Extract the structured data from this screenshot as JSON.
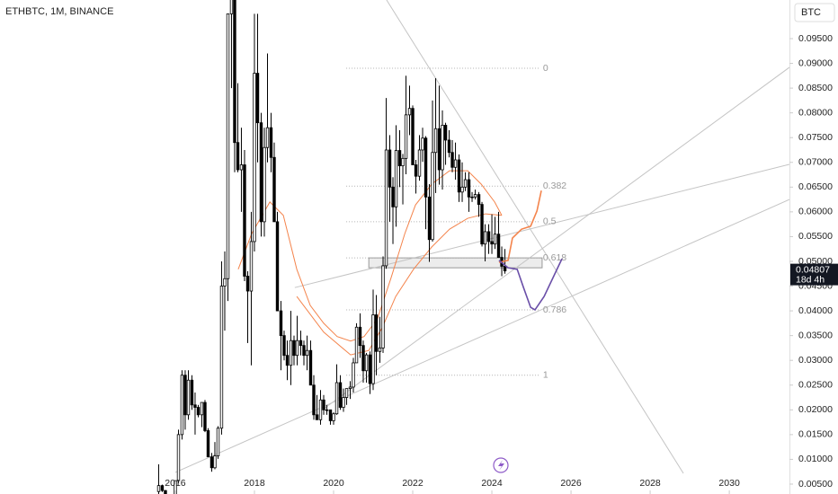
{
  "chart_data": {
    "type": "candlestick",
    "title": "ETHBTC, 1M, BINANCE",
    "currency": "BTC",
    "countdown": "18d 4h",
    "grid": false,
    "xlim": [
      2011.57,
      2031.52
    ],
    "ylim": [
      0.003,
      0.1028
    ],
    "xticks": [
      2016,
      2018,
      2020,
      2022,
      2024,
      2026,
      2028,
      2030
    ],
    "yticks": [
      {
        "value": 0.005,
        "label": "0.00500"
      },
      {
        "value": 0.01,
        "label": "0.01000"
      },
      {
        "value": 0.015,
        "label": "0.01500"
      },
      {
        "value": 0.02,
        "label": "0.02000"
      },
      {
        "value": 0.025,
        "label": "0.02500"
      },
      {
        "value": 0.03,
        "label": "0.03000"
      },
      {
        "value": 0.035,
        "label": "0.03500"
      },
      {
        "value": 0.04,
        "label": "0.04000"
      },
      {
        "value": 0.045,
        "label": "0.04500"
      },
      {
        "value": 0.05,
        "label": "0.05000"
      },
      {
        "value": 0.055,
        "label": "0.05500"
      },
      {
        "value": 0.06,
        "label": "0.06000"
      },
      {
        "value": 0.065,
        "label": "0.06500"
      },
      {
        "value": 0.07,
        "label": "0.07000"
      },
      {
        "value": 0.075,
        "label": "0.07500"
      },
      {
        "value": 0.08,
        "label": "0.08000"
      },
      {
        "value": 0.085,
        "label": "0.08500"
      },
      {
        "value": 0.09,
        "label": "0.09000"
      },
      {
        "value": 0.095,
        "label": "0.09500"
      }
    ],
    "up_color": "#ffffff",
    "down_color": "#000000",
    "x": [
      2015.58,
      2015.67,
      2015.75,
      2015.83,
      2015.92,
      2016.0,
      2016.08,
      2016.17,
      2016.25,
      2016.33,
      2016.42,
      2016.5,
      2016.58,
      2016.67,
      2016.75,
      2016.83,
      2016.92,
      2017.0,
      2017.08,
      2017.17,
      2017.25,
      2017.33,
      2017.42,
      2017.5,
      2017.58,
      2017.67,
      2017.75,
      2017.83,
      2017.92,
      2018.0,
      2018.08,
      2018.17,
      2018.25,
      2018.33,
      2018.42,
      2018.5,
      2018.58,
      2018.67,
      2018.75,
      2018.83,
      2018.92,
      2019.0,
      2019.08,
      2019.17,
      2019.25,
      2019.33,
      2019.42,
      2019.5,
      2019.58,
      2019.67,
      2019.75,
      2019.83,
      2019.92,
      2020.0,
      2020.08,
      2020.17,
      2020.25,
      2020.33,
      2020.42,
      2020.5,
      2020.58,
      2020.67,
      2020.75,
      2020.83,
      2020.92,
      2021.0,
      2021.08,
      2021.17,
      2021.25,
      2021.33,
      2021.42,
      2021.5,
      2021.58,
      2021.67,
      2021.75,
      2021.83,
      2021.92,
      2022.0,
      2022.08,
      2022.17,
      2022.25,
      2022.33,
      2022.42,
      2022.5,
      2022.58,
      2022.67,
      2022.75,
      2022.83,
      2022.92,
      2023.0,
      2023.08,
      2023.17,
      2023.25,
      2023.33,
      2023.42,
      2023.5,
      2023.58,
      2023.67,
      2023.75,
      2023.83,
      2023.92,
      2024.0,
      2024.08,
      2024.17,
      2024.25,
      2024.33
    ],
    "open": [
      0.0035,
      0.0047,
      0.0037,
      0.0019,
      0.0024,
      0.002,
      0.0057,
      0.015,
      0.027,
      0.019,
      0.026,
      0.021,
      0.0205,
      0.019,
      0.0215,
      0.0158,
      0.0105,
      0.0083,
      0.0107,
      0.0163,
      0.045,
      0.0465,
      0.1,
      0.11,
      0.074,
      0.0685,
      0.0695,
      0.047,
      0.044,
      0.054,
      0.088,
      0.078,
      0.058,
      0.073,
      0.077,
      0.071,
      0.058,
      0.04,
      0.035,
      0.031,
      0.029,
      0.034,
      0.031,
      0.034,
      0.033,
      0.031,
      0.032,
      0.025,
      0.019,
      0.018,
      0.022,
      0.02,
      0.02,
      0.0178,
      0.0192,
      0.0255,
      0.0205,
      0.0225,
      0.0243,
      0.0246,
      0.0295,
      0.0367,
      0.033,
      0.0279,
      0.0311,
      0.0253,
      0.0392,
      0.0318,
      0.0325,
      0.0491,
      0.0725,
      0.065,
      0.061,
      0.0724,
      0.0693,
      0.0708,
      0.0796,
      0.0809,
      0.0695,
      0.0672,
      0.0725,
      0.0749,
      0.063,
      0.0544,
      0.072,
      0.0768,
      0.0685,
      0.0775,
      0.0745,
      0.072,
      0.069,
      0.0705,
      0.064,
      0.065,
      0.0665,
      0.063,
      0.063,
      0.0635,
      0.0615,
      0.0535,
      0.056,
      0.054,
      0.0535,
      0.0555,
      0.0508,
      0.049
    ],
    "high": [
      0.009,
      0.0049,
      0.0038,
      0.0024,
      0.0025,
      0.0057,
      0.016,
      0.028,
      0.028,
      0.028,
      0.027,
      0.0235,
      0.021,
      0.0215,
      0.022,
      0.0163,
      0.0113,
      0.0135,
      0.0167,
      0.05,
      0.052,
      0.1,
      0.156,
      0.12,
      0.086,
      0.077,
      0.0725,
      0.048,
      0.06,
      0.1,
      0.1,
      0.08,
      0.077,
      0.092,
      0.08,
      0.074,
      0.06,
      0.042,
      0.036,
      0.034,
      0.04,
      0.035,
      0.039,
      0.036,
      0.034,
      0.035,
      0.034,
      0.027,
      0.023,
      0.024,
      0.023,
      0.021,
      0.02,
      0.0195,
      0.0292,
      0.027,
      0.0243,
      0.024,
      0.0258,
      0.0305,
      0.0375,
      0.0395,
      0.034,
      0.0315,
      0.0318,
      0.0443,
      0.0432,
      0.0388,
      0.051,
      0.083,
      0.0755,
      0.067,
      0.0775,
      0.0765,
      0.0717,
      0.0875,
      0.0855,
      0.0815,
      0.0705,
      0.0755,
      0.077,
      0.0753,
      0.0656,
      0.0825,
      0.087,
      0.0855,
      0.0805,
      0.078,
      0.0765,
      0.0745,
      0.074,
      0.0716,
      0.07,
      0.068,
      0.068,
      0.064,
      0.0645,
      0.064,
      0.062,
      0.0575,
      0.0575,
      0.0595,
      0.059,
      0.06,
      0.053,
      0.0525
    ],
    "low": [
      0.0023,
      0.0034,
      0.0017,
      0.0015,
      0.0019,
      0.002,
      0.0052,
      0.014,
      0.016,
      0.018,
      0.02,
      0.015,
      0.0185,
      0.0165,
      0.0155,
      0.011,
      0.0075,
      0.008,
      0.0101,
      0.015,
      0.036,
      0.042,
      0.085,
      0.068,
      0.068,
      0.06,
      0.046,
      0.0335,
      0.029,
      0.052,
      0.07,
      0.055,
      0.055,
      0.07,
      0.068,
      0.058,
      0.04,
      0.028,
      0.03,
      0.026,
      0.025,
      0.029,
      0.029,
      0.031,
      0.029,
      0.028,
      0.025,
      0.018,
      0.018,
      0.017,
      0.019,
      0.019,
      0.017,
      0.017,
      0.019,
      0.02,
      0.0196,
      0.021,
      0.0222,
      0.0235,
      0.0295,
      0.0305,
      0.0255,
      0.0255,
      0.0232,
      0.024,
      0.027,
      0.0295,
      0.0315,
      0.0485,
      0.058,
      0.0535,
      0.057,
      0.065,
      0.0615,
      0.0676,
      0.0755,
      0.0695,
      0.0637,
      0.0663,
      0.0701,
      0.0565,
      0.0499,
      0.054,
      0.0638,
      0.0655,
      0.0645,
      0.0695,
      0.071,
      0.068,
      0.0665,
      0.062,
      0.062,
      0.0642,
      0.06,
      0.062,
      0.0625,
      0.059,
      0.053,
      0.05,
      0.0515,
      0.0515,
      0.0525,
      0.051,
      0.047,
      0.0475
    ],
    "close": [
      0.0047,
      0.0037,
      0.0019,
      0.0024,
      0.002,
      0.0057,
      0.015,
      0.027,
      0.019,
      0.026,
      0.021,
      0.0205,
      0.019,
      0.0215,
      0.0158,
      0.0105,
      0.0083,
      0.0107,
      0.0163,
      0.045,
      0.0465,
      0.1,
      0.11,
      0.074,
      0.0685,
      0.0695,
      0.047,
      0.044,
      0.054,
      0.088,
      0.078,
      0.058,
      0.073,
      0.077,
      0.071,
      0.058,
      0.04,
      0.035,
      0.031,
      0.029,
      0.034,
      0.031,
      0.034,
      0.033,
      0.031,
      0.032,
      0.025,
      0.019,
      0.018,
      0.022,
      0.02,
      0.02,
      0.0178,
      0.0192,
      0.0255,
      0.0205,
      0.0225,
      0.0243,
      0.0246,
      0.0295,
      0.0367,
      0.033,
      0.0279,
      0.0311,
      0.0253,
      0.0392,
      0.0318,
      0.0325,
      0.0491,
      0.0725,
      0.065,
      0.061,
      0.0724,
      0.0693,
      0.0708,
      0.0796,
      0.0809,
      0.0695,
      0.0672,
      0.0725,
      0.0749,
      0.063,
      0.0544,
      0.072,
      0.0768,
      0.0685,
      0.0775,
      0.0745,
      0.072,
      0.069,
      0.0705,
      0.064,
      0.065,
      0.0665,
      0.063,
      0.063,
      0.0635,
      0.0615,
      0.0535,
      0.056,
      0.054,
      0.0535,
      0.0555,
      0.0508,
      0.049,
      0.04807
    ],
    "moving_averages": [
      {
        "color": "#f4844c",
        "x": [
          2017.59,
          2017.93,
          2018.39,
          2018.73,
          2019.07,
          2019.41,
          2019.75,
          2020.09,
          2020.43,
          2020.77,
          2021.11,
          2021.45,
          2021.8,
          2022.07,
          2022.48,
          2022.93,
          2023.39,
          2023.73,
          2024.07,
          2024.25
        ],
        "values": [
          0.0484,
          0.0556,
          0.062,
          0.0593,
          0.0484,
          0.0411,
          0.0375,
          0.0348,
          0.0339,
          0.0348,
          0.0384,
          0.0466,
          0.0556,
          0.0614,
          0.0656,
          0.0683,
          0.0683,
          0.0656,
          0.062,
          0.0593
        ]
      },
      {
        "color": "#f4844c",
        "x": [
          2019.07,
          2019.75,
          2020.43,
          2020.89,
          2021.23,
          2021.57,
          2022.02,
          2022.48,
          2022.93,
          2023.39,
          2023.84,
          2024.25
        ],
        "values": [
          0.0429,
          0.0357,
          0.0311,
          0.032,
          0.0366,
          0.0429,
          0.0484,
          0.0529,
          0.0565,
          0.0587,
          0.0596,
          0.0593
        ]
      }
    ],
    "trendline_color": "#c4c4c4",
    "trendlines": [
      {
        "x": [
          2016.0,
          2031.52
        ],
        "y": [
          0.00736,
          0.0625
        ]
      },
      {
        "x": [
          2019.02,
          2031.52
        ],
        "y": [
          0.0447,
          0.0696
        ]
      },
      {
        "x": [
          2019.75,
          2031.52
        ],
        "y": [
          0.0202,
          0.0892
        ]
      },
      {
        "x": [
          2021.34,
          2028.84
        ],
        "y": [
          0.1028,
          0.00718
        ]
      }
    ],
    "fib": {
      "color": "#b0b0b0",
      "x": [
        2020.32,
        2025.2
      ],
      "ratios": [
        0,
        0.382,
        0.5,
        0.618,
        0.786,
        1
      ],
      "prices": [
        0.089,
        0.0652,
        0.058,
        0.0507,
        0.0402,
        0.027
      ]
    },
    "zone": {
      "x": [
        2020.89,
        2025.27
      ],
      "y": [
        0.0487,
        0.0507
      ]
    },
    "projections": [
      {
        "color": "#f4844c",
        "x": [
          2024.18,
          2024.41,
          2024.52,
          2024.75,
          2024.98,
          2025.14,
          2025.25
        ],
        "values": [
          0.0498,
          0.0502,
          0.0547,
          0.0565,
          0.0571,
          0.0602,
          0.0643
        ]
      },
      {
        "color": "#6a4fa8",
        "x": [
          2024.18,
          2024.41,
          2024.64,
          2024.8,
          2024.98,
          2025.09,
          2025.32,
          2025.77
        ],
        "values": [
          0.0502,
          0.0487,
          0.0484,
          0.0447,
          0.0407,
          0.0402,
          0.0429,
          0.0505
        ]
      }
    ]
  }
}
